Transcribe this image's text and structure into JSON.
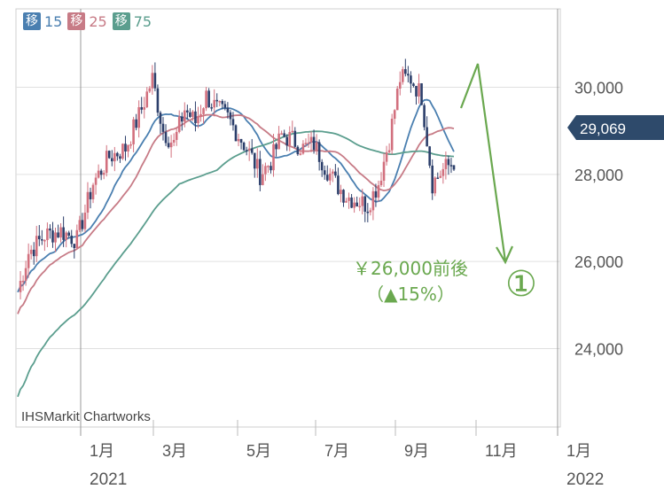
{
  "legend": [
    {
      "box": "移",
      "value": "15",
      "color": "#4a7fb0"
    },
    {
      "box": "移",
      "value": "25",
      "color": "#c77b86"
    },
    {
      "box": "移",
      "value": "75",
      "color": "#5b9e8e"
    }
  ],
  "source": "IHSMarkit Chartworks",
  "last_price": "29,069",
  "annotation": {
    "line1": "￥26,000前後",
    "line2": "（▲15%）",
    "marker": "①",
    "color": "#6aa84f",
    "from_price": 30500,
    "to_price": 26000
  },
  "chart_data": {
    "type": "candlestick",
    "y_ticks": [
      "30,000",
      "28,000",
      "26,000",
      "24,000"
    ],
    "y_values": [
      30000,
      28000,
      26000,
      24000
    ],
    "ylim": [
      22200,
      31800
    ],
    "x_ticks": [
      {
        "label": "1月",
        "sub": "2021"
      },
      {
        "label": "3月",
        "sub": ""
      },
      {
        "label": "5月",
        "sub": ""
      },
      {
        "label": "7月",
        "sub": ""
      },
      {
        "label": "9月",
        "sub": ""
      },
      {
        "label": "11月",
        "sub": ""
      },
      {
        "label": "1月",
        "sub": "2022"
      }
    ],
    "series": [
      {
        "name": "15",
        "color": "#4a7fb0"
      },
      {
        "name": "25",
        "color": "#c77b86"
      },
      {
        "name": "75",
        "color": "#5b9e8e"
      }
    ],
    "close_path": [
      [
        0,
        25300
      ],
      [
        4,
        26200
      ],
      [
        10,
        26600
      ],
      [
        16,
        26700
      ],
      [
        22,
        26500
      ],
      [
        28,
        27800
      ],
      [
        34,
        28400
      ],
      [
        40,
        28600
      ],
      [
        46,
        29500
      ],
      [
        50,
        30200
      ],
      [
        54,
        29000
      ],
      [
        58,
        28700
      ],
      [
        62,
        29500
      ],
      [
        66,
        29200
      ],
      [
        70,
        29800
      ],
      [
        74,
        29500
      ],
      [
        78,
        29300
      ],
      [
        82,
        28900
      ],
      [
        86,
        28500
      ],
      [
        90,
        28000
      ],
      [
        94,
        28300
      ],
      [
        98,
        28900
      ],
      [
        102,
        28800
      ],
      [
        106,
        28600
      ],
      [
        110,
        28700
      ],
      [
        114,
        28200
      ],
      [
        118,
        27800
      ],
      [
        122,
        27500
      ],
      [
        126,
        27400
      ],
      [
        130,
        27300
      ],
      [
        134,
        27800
      ],
      [
        138,
        28800
      ],
      [
        142,
        30200
      ],
      [
        146,
        30200
      ],
      [
        150,
        29800
      ],
      [
        154,
        27800
      ],
      [
        158,
        28100
      ],
      [
        162,
        28300
      ]
    ]
  }
}
